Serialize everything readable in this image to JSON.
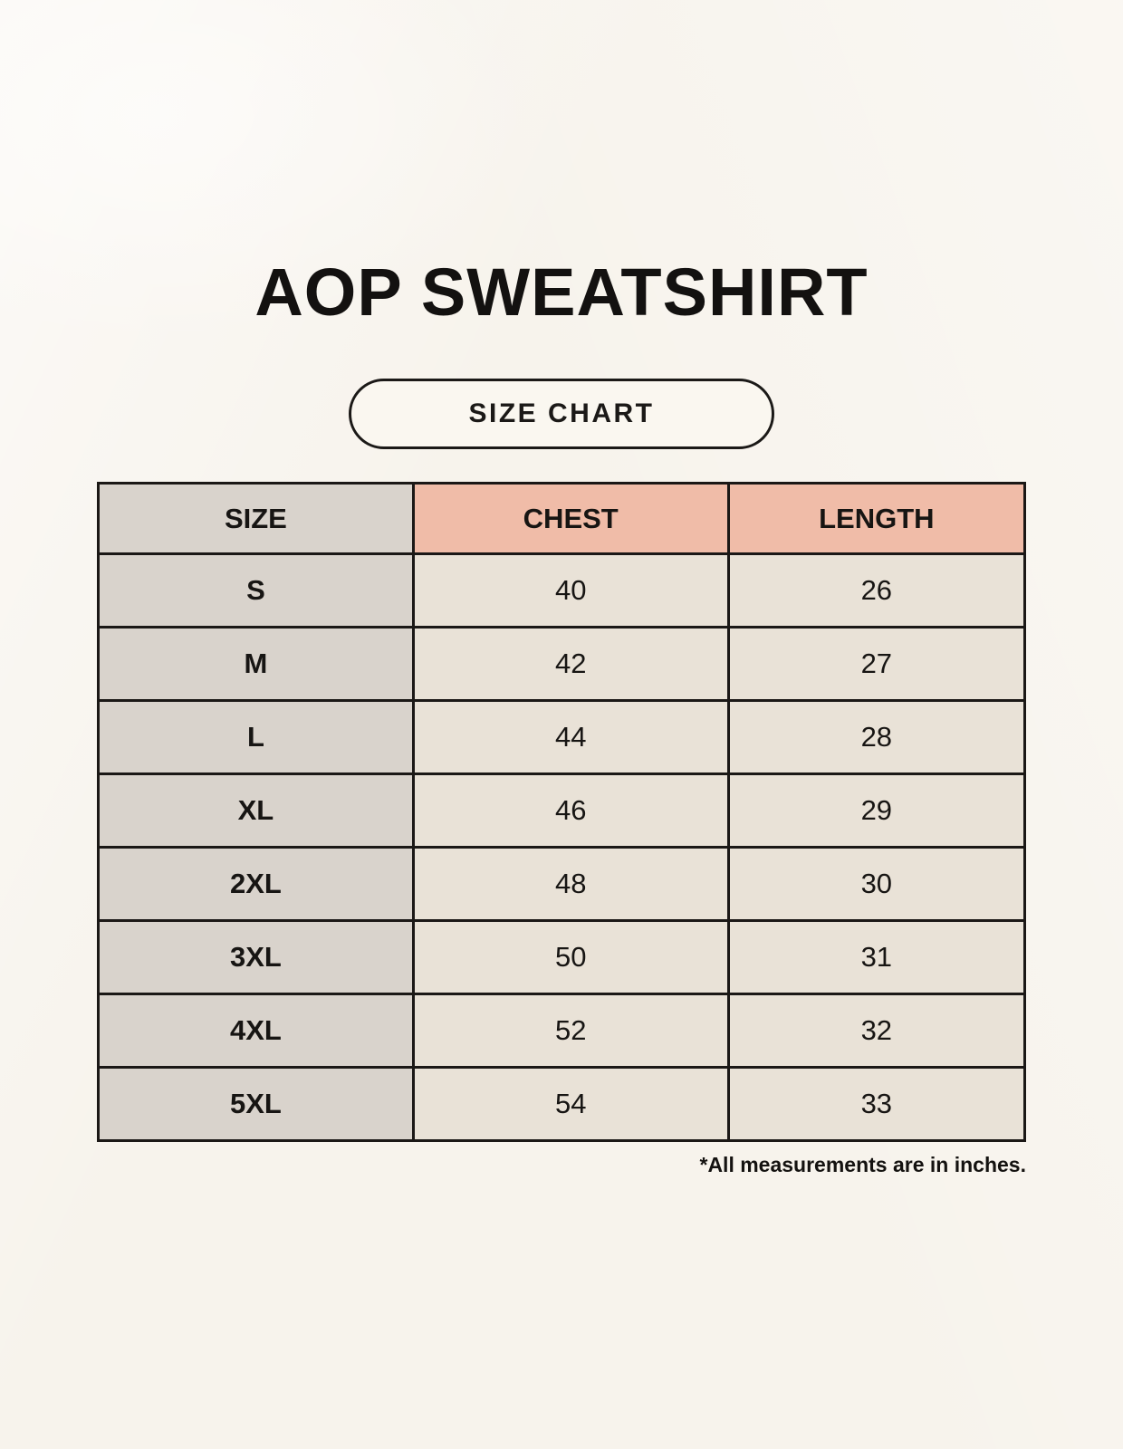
{
  "page": {
    "title": "AOP SWEATSHIRT",
    "badge_label": "SIZE CHART",
    "footnote": "*All measurements are in inches."
  },
  "colors": {
    "background": "#f7f3ec",
    "size_column_bg": "#d9d3cc",
    "header_accent_bg": "#f0bca8",
    "value_cell_bg": "#e9e2d7",
    "border": "#1b1816",
    "text": "#171513"
  },
  "chart_data": {
    "type": "table",
    "title": "AOP SWEATSHIRT",
    "subtitle": "SIZE CHART",
    "columns": [
      "SIZE",
      "CHEST",
      "LENGTH"
    ],
    "units": "inches",
    "note": "*All measurements are in inches.",
    "rows": [
      {
        "size": "S",
        "chest": 40,
        "length": 26
      },
      {
        "size": "M",
        "chest": 42,
        "length": 27
      },
      {
        "size": "L",
        "chest": 44,
        "length": 28
      },
      {
        "size": "XL",
        "chest": 46,
        "length": 29
      },
      {
        "size": "2XL",
        "chest": 48,
        "length": 30
      },
      {
        "size": "3XL",
        "chest": 50,
        "length": 31
      },
      {
        "size": "4XL",
        "chest": 52,
        "length": 32
      },
      {
        "size": "5XL",
        "chest": 54,
        "length": 33
      }
    ]
  }
}
